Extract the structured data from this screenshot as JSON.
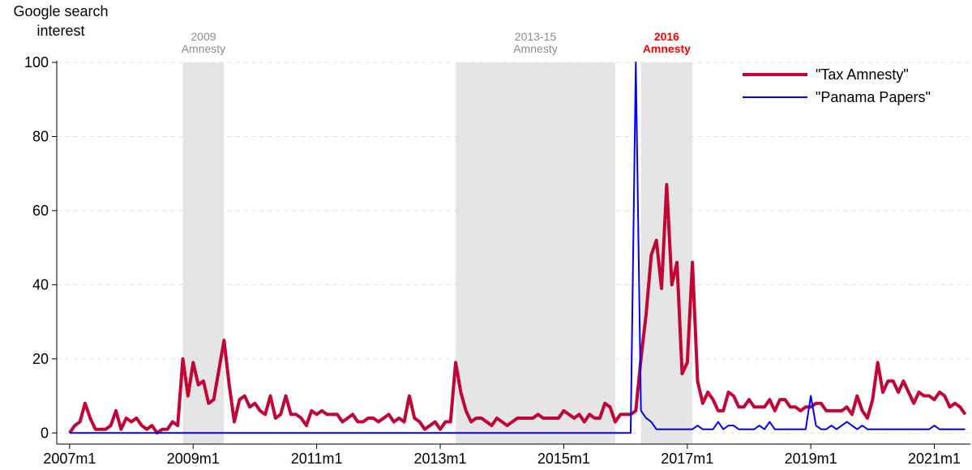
{
  "chart_data": {
    "type": "line",
    "y_label": [
      "Google search",
      "interest"
    ],
    "x": [
      564,
      565,
      566,
      567,
      568,
      569,
      570,
      571,
      572,
      573,
      574,
      575,
      576,
      577,
      578,
      579,
      580,
      581,
      582,
      583,
      584,
      585,
      586,
      587,
      588,
      589,
      590,
      591,
      592,
      593,
      594,
      595,
      596,
      597,
      598,
      599,
      600,
      601,
      602,
      603,
      604,
      605,
      606,
      607,
      608,
      609,
      610,
      611,
      612,
      613,
      614,
      615,
      616,
      617,
      618,
      619,
      620,
      621,
      622,
      623,
      624,
      625,
      626,
      627,
      628,
      629,
      630,
      631,
      632,
      633,
      634,
      635,
      636,
      637,
      638,
      639,
      640,
      641,
      642,
      643,
      644,
      645,
      646,
      647,
      648,
      649,
      650,
      651,
      652,
      653,
      654,
      655,
      656,
      657,
      658,
      659,
      660,
      661,
      662,
      663,
      664,
      665,
      666,
      667,
      668,
      669,
      670,
      671,
      672,
      673,
      674,
      675,
      676,
      677,
      678,
      679,
      680,
      681,
      682,
      683,
      684,
      685,
      686,
      687,
      688,
      689,
      690,
      691,
      692,
      693,
      694,
      695,
      696,
      697,
      698,
      699,
      700,
      701,
      702,
      703,
      704,
      705,
      706,
      707,
      708,
      709,
      710,
      711,
      712,
      713,
      714,
      715,
      716,
      717,
      718,
      719,
      720,
      721,
      722,
      723,
      724,
      725,
      726,
      727,
      728,
      729,
      730,
      731,
      732,
      733,
      734,
      735,
      736,
      737,
      738
    ],
    "series": [
      {
        "name": "\"Tax Amnesty\"",
        "color": "#c10534",
        "width": 4,
        "values": [
          0,
          2,
          3,
          8,
          4,
          1,
          1,
          1,
          2,
          6,
          1,
          4,
          3,
          4,
          2,
          1,
          2,
          0,
          1,
          1,
          3,
          2,
          20,
          10,
          19,
          13,
          14,
          8,
          9,
          17,
          25,
          13,
          3,
          9,
          10,
          7,
          8,
          6,
          5,
          10,
          4,
          5,
          10,
          5,
          5,
          4,
          2,
          6,
          5,
          6,
          5,
          5,
          5,
          3,
          4,
          5,
          3,
          3,
          4,
          4,
          3,
          4,
          5,
          3,
          4,
          3,
          10,
          4,
          3,
          1,
          2,
          3,
          1,
          3,
          3,
          19,
          11,
          6,
          3,
          4,
          4,
          3,
          2,
          4,
          3,
          2,
          3,
          4,
          4,
          4,
          4,
          5,
          4,
          4,
          4,
          4,
          6,
          5,
          4,
          5,
          3,
          5,
          4,
          4,
          8,
          7,
          3,
          5,
          5,
          5,
          6,
          20,
          32,
          48,
          52,
          39,
          67,
          40,
          46,
          16,
          19,
          46,
          14,
          8,
          11,
          9,
          6,
          6,
          11,
          10,
          7,
          7,
          9,
          7,
          7,
          7,
          9,
          6,
          9,
          9,
          7,
          7,
          6,
          7,
          7,
          8,
          8,
          6,
          6,
          6,
          6,
          7,
          5,
          10,
          6,
          4,
          9,
          19,
          11,
          14,
          14,
          11,
          14,
          11,
          8,
          11,
          10,
          10,
          9,
          11,
          10,
          7,
          8,
          7,
          5
        ]
      },
      {
        "name": "\"Panama Papers\"",
        "color": "#0000ff",
        "width": 2,
        "values": [
          0,
          0,
          0,
          0,
          0,
          0,
          0,
          0,
          0,
          0,
          0,
          0,
          0,
          0,
          0,
          0,
          0,
          0,
          0,
          0,
          0,
          0,
          0,
          0,
          0,
          0,
          0,
          0,
          0,
          0,
          0,
          0,
          0,
          0,
          0,
          0,
          0,
          0,
          0,
          0,
          0,
          0,
          0,
          0,
          0,
          0,
          0,
          0,
          0,
          0,
          0,
          0,
          0,
          0,
          0,
          0,
          0,
          0,
          0,
          0,
          0,
          0,
          0,
          0,
          0,
          0,
          0,
          0,
          0,
          0,
          0,
          0,
          0,
          0,
          0,
          0,
          0,
          0,
          0,
          0,
          0,
          0,
          0,
          0,
          0,
          0,
          0,
          0,
          0,
          0,
          0,
          0,
          0,
          0,
          0,
          0,
          0,
          0,
          0,
          0,
          0,
          0,
          0,
          0,
          0,
          0,
          0,
          0,
          0,
          0,
          100,
          6,
          4,
          3,
          1,
          1,
          1,
          1,
          1,
          1,
          1,
          1,
          2,
          1,
          1,
          1,
          3,
          1,
          2,
          2,
          1,
          1,
          1,
          1,
          2,
          1,
          3,
          1,
          1,
          1,
          1,
          1,
          1,
          1,
          10,
          2,
          1,
          1,
          2,
          1,
          2,
          3,
          2,
          1,
          2,
          1,
          1,
          1,
          1,
          1,
          1,
          1,
          1,
          1,
          1,
          1,
          1,
          1,
          2,
          1,
          1,
          1,
          1,
          1,
          1
        ]
      }
    ],
    "shaded": [
      {
        "xrange": [
          586,
          594
        ],
        "label": [
          "2009",
          "Amnesty"
        ],
        "label_color": "#8c8c8c",
        "bold": false
      },
      {
        "xrange": [
          639,
          670
        ],
        "label": [
          "2013-15",
          "Amnesty"
        ],
        "label_color": "#8c8c8c",
        "bold": false
      },
      {
        "xrange": [
          675,
          685
        ],
        "label": [
          "2016",
          "Amnesty"
        ],
        "label_color": "#ff0000",
        "bold": true
      }
    ],
    "shade_color": "#e5e5e5",
    "xlim": [
      561.5,
      739
    ],
    "xticks": [
      {
        "value": 564,
        "label": "2007m1"
      },
      {
        "value": 588,
        "label": "2009m1"
      },
      {
        "value": 612,
        "label": "2011m1"
      },
      {
        "value": 636,
        "label": "2013m1"
      },
      {
        "value": 660,
        "label": "2015m1"
      },
      {
        "value": 684,
        "label": "2017m1"
      },
      {
        "value": 708,
        "label": "2019m1"
      },
      {
        "value": 732,
        "label": "2021m1"
      }
    ],
    "ylim": [
      -3,
      100
    ],
    "yticks": [
      0,
      20,
      40,
      60,
      80,
      100
    ],
    "grid": true,
    "legend": "upper right"
  }
}
